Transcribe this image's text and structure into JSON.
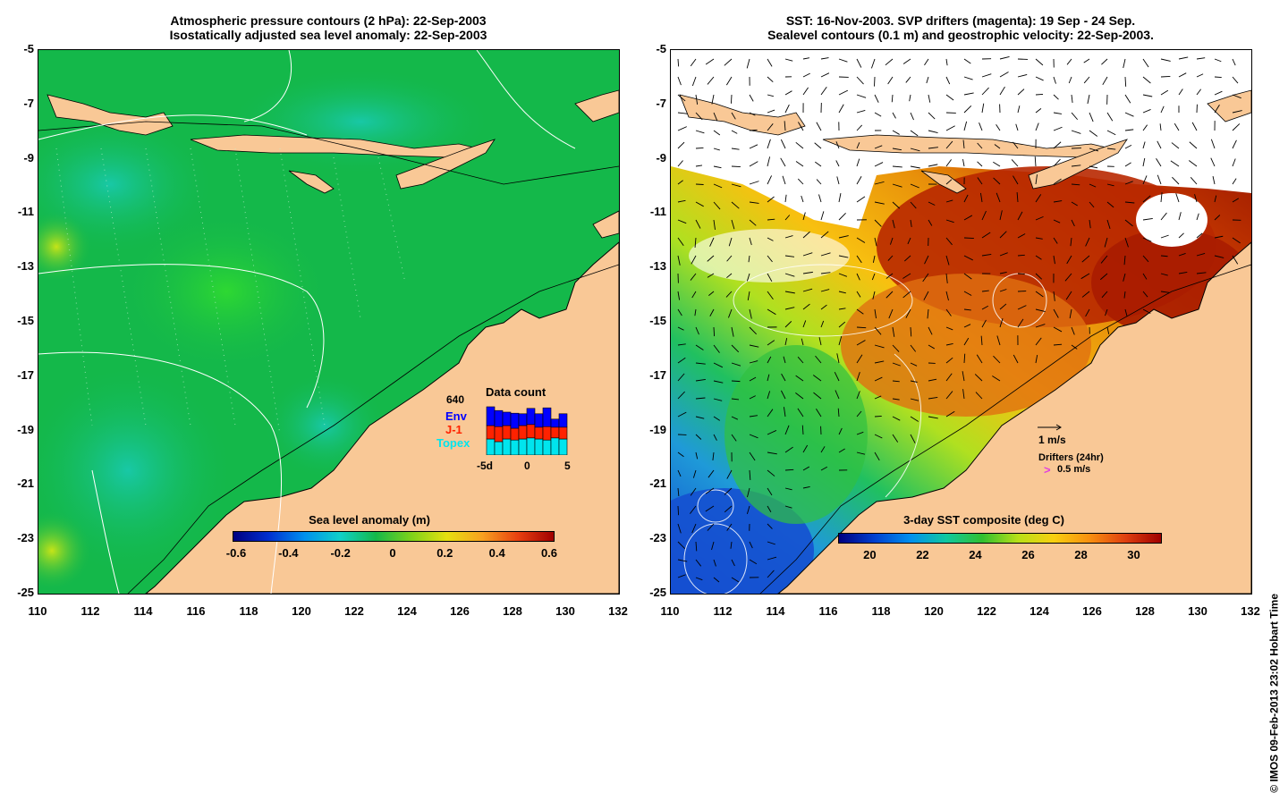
{
  "left_panel": {
    "title_line1": "Atmospheric pressure contours (2 hPa): 22-Sep-2003",
    "title_line2": "Isostatically adjusted sea level anomaly: 22-Sep-2003",
    "colorbar_label": "Sea level anomaly (m)",
    "colorbar_ticks": [
      "-0.6",
      "-0.4",
      "-0.2",
      "0",
      "0.2",
      "0.4",
      "0.6"
    ],
    "data_count": {
      "title": "Data count",
      "max_label": "640",
      "legend": [
        "Env",
        "J-1",
        "Topex"
      ],
      "x_ticks": [
        "-5d",
        "0",
        "5"
      ],
      "colors": {
        "env": "#0000ff",
        "j1": "#ff2200",
        "topex": "#00e5ee"
      },
      "bars_env": [
        0.35,
        0.3,
        0.25,
        0.28,
        0.22,
        0.3,
        0.25,
        0.35,
        0.15,
        0.25
      ],
      "bars_j1": [
        0.25,
        0.28,
        0.25,
        0.22,
        0.25,
        0.25,
        0.22,
        0.25,
        0.2,
        0.22
      ],
      "bars_topex": [
        0.3,
        0.25,
        0.3,
        0.28,
        0.3,
        0.32,
        0.3,
        0.28,
        0.32,
        0.3
      ]
    }
  },
  "right_panel": {
    "title_line1": "SST: 16-Nov-2003. SVP drifters (magenta): 19 Sep - 24 Sep.",
    "title_line2": "Sealevel contours (0.1 m) and geostrophic velocity: 22-Sep-2003.",
    "colorbar_label": "3-day SST composite (deg C)",
    "colorbar_ticks": [
      "20",
      "22",
      "24",
      "26",
      "28",
      "30"
    ],
    "velocity_scale_label": "1 m/s",
    "drifters_label": "Drifters (24hr)",
    "drifters_speed": "0.5 m/s",
    "drifters_symbol": ">"
  },
  "axes": {
    "y_ticks": [
      "-5",
      "-7",
      "-9",
      "-11",
      "-13",
      "-15",
      "-17",
      "-19",
      "-21",
      "-23",
      "-25"
    ],
    "x_ticks": [
      "110",
      "112",
      "114",
      "116",
      "118",
      "120",
      "122",
      "124",
      "126",
      "128",
      "130",
      "132"
    ]
  },
  "credit": "© IMOS 09-Feb-2013 23:02 Hobart Time",
  "colors": {
    "land": "#f9c896",
    "ocean_green": "#14b84a",
    "sst_hot": "#b82800",
    "sst_warm": "#e8900a",
    "sst_cool": "#1f9ad8"
  }
}
